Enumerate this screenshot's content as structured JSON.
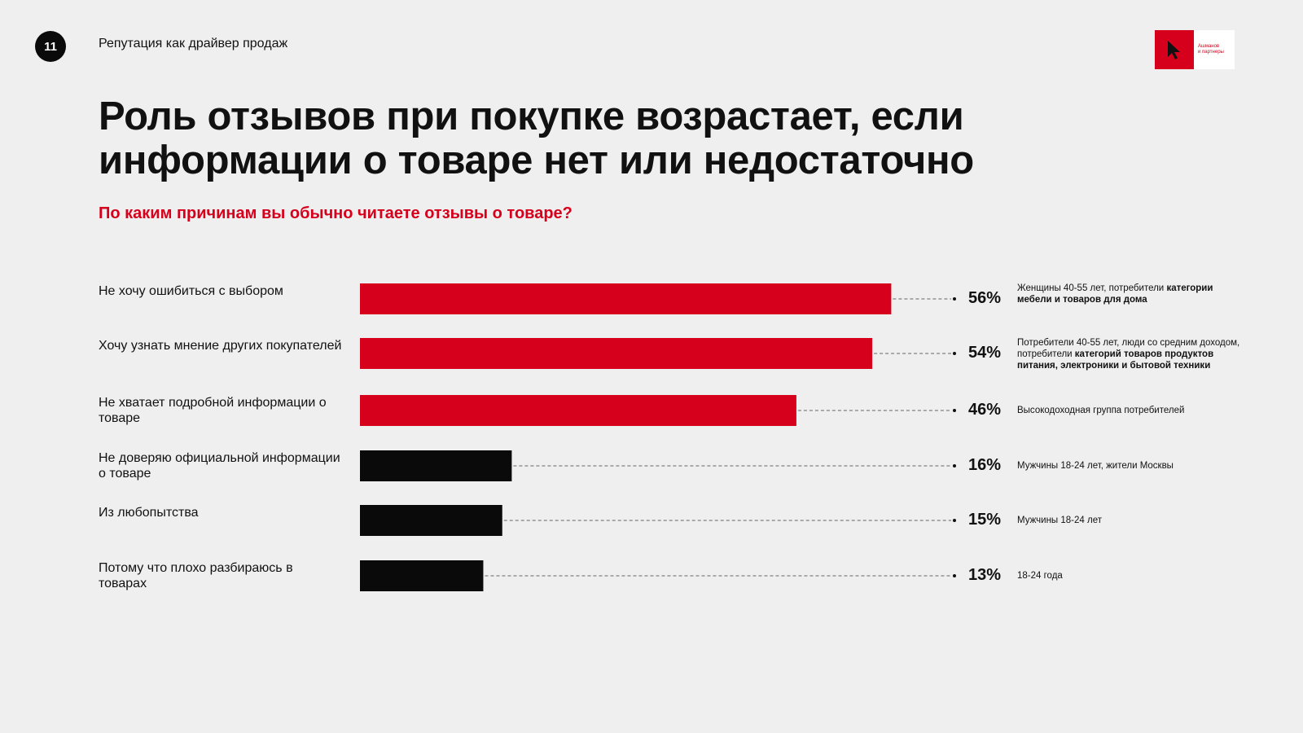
{
  "header": {
    "page_number": "11",
    "section_title": "Репутация как драйвер продаж",
    "logo_text_line1": "Ашманов",
    "logo_text_line2": "и партнеры"
  },
  "headline": {
    "line1": "Роль отзывов при покупке возрастает, если",
    "line2": "информации о товаре нет или недостаточно"
  },
  "question": "По каким причинам вы обычно читаете отзывы о товаре?",
  "colors": {
    "accent_red": "#d6001c",
    "bar_black": "#0a0a0a",
    "background": "#efefef"
  },
  "chart_data": {
    "type": "bar",
    "orientation": "horizontal",
    "unit": "%",
    "xlim": [
      0,
      63
    ],
    "grid": false,
    "categories": [
      "Не хочу ошибиться с выбором",
      "Хочу узнать мнение других покупателей",
      "Не хватает подробной информации о товаре",
      "Не доверяю официальной информации о товаре",
      "Из любопытства",
      "Потому что плохо разбираюсь в товарах"
    ],
    "values": [
      56,
      54,
      46,
      16,
      15,
      13
    ],
    "bar_colors": [
      "#d6001c",
      "#d6001c",
      "#d6001c",
      "#0a0a0a",
      "#0a0a0a",
      "#0a0a0a"
    ],
    "value_labels": [
      "56%",
      "54%",
      "46%",
      "16%",
      "15%",
      "13%"
    ],
    "annotations": [
      {
        "plain": "Женщины 40-55 лет, потребители ",
        "bold": "категории мебели и товаров для дома"
      },
      {
        "plain": "Потребители 40-55 лет, люди со средним доходом, потребители ",
        "bold": "категорий товаров продуктов питания, электроники и бытовой техники"
      },
      {
        "plain": "Высокодоходная группа потребителей",
        "bold": ""
      },
      {
        "plain": "Мужчины 18-24 лет, жители Москвы",
        "bold": ""
      },
      {
        "plain": "Мужчины 18-24 лет",
        "bold": ""
      },
      {
        "plain": "18-24 года",
        "bold": ""
      }
    ]
  }
}
